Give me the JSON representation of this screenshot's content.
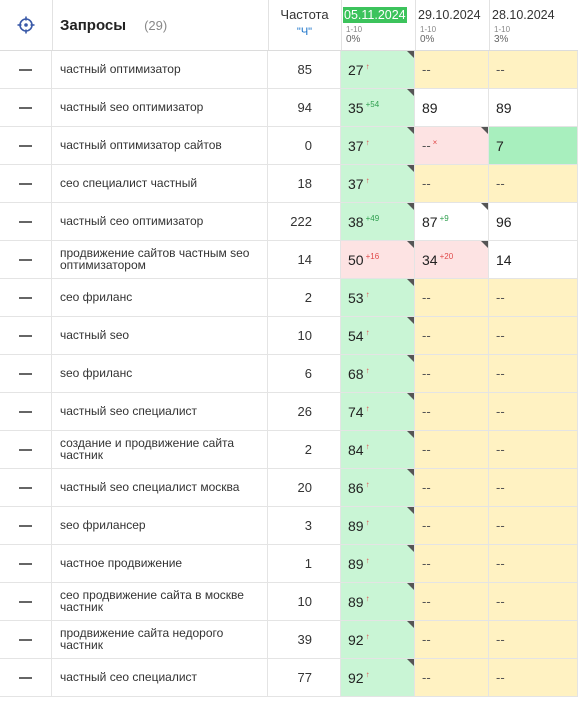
{
  "header": {
    "title": "Запросы",
    "count": "(29)",
    "freq_label": "Частота",
    "freq_sub": "\"Ч\"",
    "dates": [
      {
        "label": "05.11.2024",
        "range": "1-10",
        "pct": "0%",
        "active": true
      },
      {
        "label": "29.10.2024",
        "range": "1-10",
        "pct": "0%",
        "active": false
      },
      {
        "label": "28.10.2024",
        "range": "1-10",
        "pct": "3%",
        "active": false
      }
    ]
  },
  "rows": [
    {
      "query": "частный оптимизатор",
      "freq": "85",
      "p": [
        {
          "v": "27",
          "s": "↑",
          "k": "up",
          "bg": "green",
          "corner": true
        },
        {
          "v": "--",
          "s": "",
          "k": "",
          "bg": "yellow"
        },
        {
          "v": "--",
          "s": "",
          "k": "",
          "bg": "yellow"
        }
      ]
    },
    {
      "query": "частный seo оптимизатор",
      "freq": "94",
      "p": [
        {
          "v": "35",
          "s": "+54",
          "k": "gplus",
          "bg": "green",
          "corner": true
        },
        {
          "v": "89",
          "s": "",
          "k": "",
          "bg": "white"
        },
        {
          "v": "89",
          "s": "",
          "k": "",
          "bg": "white"
        }
      ]
    },
    {
      "query": "частный оптимизатор сайтов",
      "freq": "0",
      "p": [
        {
          "v": "37",
          "s": "↑",
          "k": "up",
          "bg": "green",
          "corner": true
        },
        {
          "v": "--",
          "s": "×",
          "k": "rplus",
          "bg": "red",
          "corner": true
        },
        {
          "v": "7",
          "s": "",
          "k": "",
          "bg": "strong"
        }
      ]
    },
    {
      "query": "сео специалист частный",
      "freq": "18",
      "p": [
        {
          "v": "37",
          "s": "↑",
          "k": "up",
          "bg": "green",
          "corner": true
        },
        {
          "v": "--",
          "s": "",
          "k": "",
          "bg": "yellow"
        },
        {
          "v": "--",
          "s": "",
          "k": "",
          "bg": "yellow"
        }
      ]
    },
    {
      "query": "частный сео оптимизатор",
      "freq": "222",
      "p": [
        {
          "v": "38",
          "s": "+49",
          "k": "gplus",
          "bg": "green",
          "corner": true
        },
        {
          "v": "87",
          "s": "+9",
          "k": "gplus",
          "bg": "white",
          "corner": true
        },
        {
          "v": "96",
          "s": "",
          "k": "",
          "bg": "white"
        }
      ]
    },
    {
      "query": "продвижение сайтов частным seo оптимизатором",
      "freq": "14",
      "p": [
        {
          "v": "50",
          "s": "+16",
          "k": "rplus",
          "bg": "red",
          "corner": true
        },
        {
          "v": "34",
          "s": "+20",
          "k": "rplus",
          "bg": "red",
          "corner": true
        },
        {
          "v": "14",
          "s": "",
          "k": "",
          "bg": "white"
        }
      ]
    },
    {
      "query": "сео фриланс",
      "freq": "2",
      "p": [
        {
          "v": "53",
          "s": "↑",
          "k": "up",
          "bg": "green",
          "corner": true
        },
        {
          "v": "--",
          "s": "",
          "k": "",
          "bg": "yellow"
        },
        {
          "v": "--",
          "s": "",
          "k": "",
          "bg": "yellow"
        }
      ]
    },
    {
      "query": "частный seo",
      "freq": "10",
      "p": [
        {
          "v": "54",
          "s": "↑",
          "k": "up",
          "bg": "green",
          "corner": true
        },
        {
          "v": "--",
          "s": "",
          "k": "",
          "bg": "yellow"
        },
        {
          "v": "--",
          "s": "",
          "k": "",
          "bg": "yellow"
        }
      ]
    },
    {
      "query": "seo фриланс",
      "freq": "6",
      "p": [
        {
          "v": "68",
          "s": "↑",
          "k": "up",
          "bg": "green",
          "corner": true
        },
        {
          "v": "--",
          "s": "",
          "k": "",
          "bg": "yellow"
        },
        {
          "v": "--",
          "s": "",
          "k": "",
          "bg": "yellow"
        }
      ]
    },
    {
      "query": "частный seo специалист",
      "freq": "26",
      "p": [
        {
          "v": "74",
          "s": "↑",
          "k": "up",
          "bg": "green",
          "corner": true
        },
        {
          "v": "--",
          "s": "",
          "k": "",
          "bg": "yellow"
        },
        {
          "v": "--",
          "s": "",
          "k": "",
          "bg": "yellow"
        }
      ]
    },
    {
      "query": "создание и продвижение сайта частник",
      "freq": "2",
      "p": [
        {
          "v": "84",
          "s": "↑",
          "k": "up",
          "bg": "green",
          "corner": true
        },
        {
          "v": "--",
          "s": "",
          "k": "",
          "bg": "yellow"
        },
        {
          "v": "--",
          "s": "",
          "k": "",
          "bg": "yellow"
        }
      ]
    },
    {
      "query": "частный seo специалист москва",
      "freq": "20",
      "p": [
        {
          "v": "86",
          "s": "↑",
          "k": "up",
          "bg": "green",
          "corner": true
        },
        {
          "v": "--",
          "s": "",
          "k": "",
          "bg": "yellow"
        },
        {
          "v": "--",
          "s": "",
          "k": "",
          "bg": "yellow"
        }
      ]
    },
    {
      "query": "seo фрилансер",
      "freq": "3",
      "p": [
        {
          "v": "89",
          "s": "↑",
          "k": "up",
          "bg": "green",
          "corner": true
        },
        {
          "v": "--",
          "s": "",
          "k": "",
          "bg": "yellow"
        },
        {
          "v": "--",
          "s": "",
          "k": "",
          "bg": "yellow"
        }
      ]
    },
    {
      "query": "частное продвижение",
      "freq": "1",
      "p": [
        {
          "v": "89",
          "s": "↑",
          "k": "up",
          "bg": "green",
          "corner": true
        },
        {
          "v": "--",
          "s": "",
          "k": "",
          "bg": "yellow"
        },
        {
          "v": "--",
          "s": "",
          "k": "",
          "bg": "yellow"
        }
      ]
    },
    {
      "query": "сео продвижение сайта в москве частник",
      "freq": "10",
      "p": [
        {
          "v": "89",
          "s": "↑",
          "k": "up",
          "bg": "green",
          "corner": true
        },
        {
          "v": "--",
          "s": "",
          "k": "",
          "bg": "yellow"
        },
        {
          "v": "--",
          "s": "",
          "k": "",
          "bg": "yellow"
        }
      ]
    },
    {
      "query": "продвижение сайта недорого частник",
      "freq": "39",
      "p": [
        {
          "v": "92",
          "s": "↑",
          "k": "up",
          "bg": "green",
          "corner": true
        },
        {
          "v": "--",
          "s": "",
          "k": "",
          "bg": "yellow"
        },
        {
          "v": "--",
          "s": "",
          "k": "",
          "bg": "yellow"
        }
      ]
    },
    {
      "query": "частный сео специалист",
      "freq": "77",
      "p": [
        {
          "v": "92",
          "s": "↑",
          "k": "up",
          "bg": "green",
          "corner": true
        },
        {
          "v": "--",
          "s": "",
          "k": "",
          "bg": "yellow"
        },
        {
          "v": "--",
          "s": "",
          "k": "",
          "bg": "yellow"
        }
      ]
    }
  ]
}
